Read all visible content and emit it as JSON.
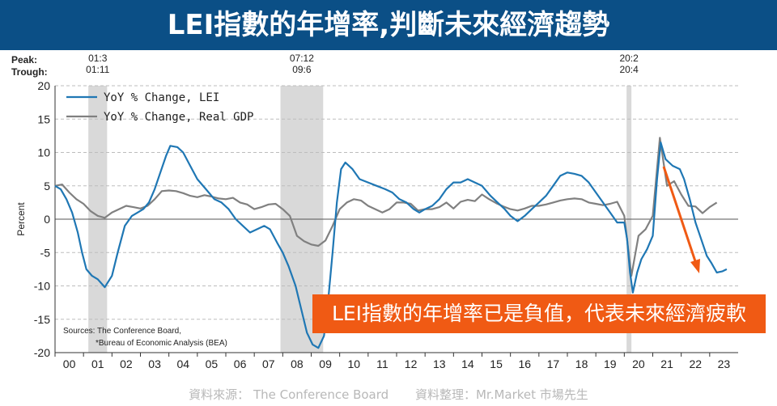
{
  "banner": {
    "title": "LEI指數的年增率,判斷未來經濟趨勢"
  },
  "callout": {
    "text": "LEI指數的年增率已是負值，代表未來經濟疲軟"
  },
  "footer": {
    "source": "資料來源： The Conference Board",
    "compiler": "資料整理：Mr.Market 市場先生"
  },
  "chart_data": {
    "type": "line",
    "peak_label": "Peak:",
    "trough_label": "Trough:",
    "ylabel": "Percent",
    "xlabel": "",
    "ylim": [
      -20,
      20
    ],
    "xlim": [
      2000,
      2024
    ],
    "yticks": [
      -20,
      -15,
      -10,
      -5,
      0,
      5,
      10,
      15,
      20
    ],
    "xtick_labels": [
      "00",
      "01",
      "02",
      "03",
      "04",
      "05",
      "06",
      "07",
      "08",
      "09",
      "10",
      "11",
      "12",
      "13",
      "14",
      "15",
      "16",
      "17",
      "18",
      "19",
      "20",
      "21",
      "22",
      "23"
    ],
    "grid": "horizontal dashed",
    "legend_position": "top-left",
    "sources": [
      "Sources: The Conference Board,",
      "*Bureau of Economic Analysis (BEA)"
    ],
    "recessions": [
      {
        "start": 2001.17,
        "end": 2001.83,
        "peak": "01:3",
        "trough": "01:11"
      },
      {
        "start": 2007.92,
        "end": 2009.42,
        "peak": "07:12",
        "trough": "09:6"
      },
      {
        "start": 2020.08,
        "end": 2020.25,
        "peak": "20:2",
        "trough": "20:4"
      }
    ],
    "series": [
      {
        "name": "YoY % Change, LEI",
        "color": "#1f77b4",
        "width": 2.2,
        "points": [
          [
            2000.0,
            5.0
          ],
          [
            2000.2,
            4.5
          ],
          [
            2000.4,
            3.0
          ],
          [
            2000.6,
            1.0
          ],
          [
            2000.8,
            -2.0
          ],
          [
            2000.95,
            -5.0
          ],
          [
            2001.1,
            -7.5
          ],
          [
            2001.3,
            -8.5
          ],
          [
            2001.5,
            -9.0
          ],
          [
            2001.75,
            -10.2
          ],
          [
            2002.0,
            -8.5
          ],
          [
            2002.2,
            -5.0
          ],
          [
            2002.45,
            -1.0
          ],
          [
            2002.7,
            0.5
          ],
          [
            2002.9,
            1.0
          ],
          [
            2003.1,
            1.5
          ],
          [
            2003.3,
            2.5
          ],
          [
            2003.5,
            4.5
          ],
          [
            2003.7,
            7.0
          ],
          [
            2003.9,
            9.5
          ],
          [
            2004.05,
            11.0
          ],
          [
            2004.3,
            10.8
          ],
          [
            2004.5,
            10.0
          ],
          [
            2004.75,
            8.0
          ],
          [
            2005.0,
            6.0
          ],
          [
            2005.3,
            4.5
          ],
          [
            2005.6,
            3.0
          ],
          [
            2005.85,
            2.5
          ],
          [
            2006.1,
            1.5
          ],
          [
            2006.35,
            0.0
          ],
          [
            2006.6,
            -1.0
          ],
          [
            2006.85,
            -2.0
          ],
          [
            2007.1,
            -1.5
          ],
          [
            2007.35,
            -1.0
          ],
          [
            2007.55,
            -1.5
          ],
          [
            2007.8,
            -3.5
          ],
          [
            2008.0,
            -5.0
          ],
          [
            2008.2,
            -7.0
          ],
          [
            2008.45,
            -10.0
          ],
          [
            2008.65,
            -13.5
          ],
          [
            2008.85,
            -17.0
          ],
          [
            2009.05,
            -18.8
          ],
          [
            2009.25,
            -19.3
          ],
          [
            2009.45,
            -17.5
          ],
          [
            2009.6,
            -12.0
          ],
          [
            2009.75,
            -5.0
          ],
          [
            2009.9,
            2.5
          ],
          [
            2010.05,
            7.5
          ],
          [
            2010.2,
            8.5
          ],
          [
            2010.45,
            7.5
          ],
          [
            2010.7,
            6.0
          ],
          [
            2011.0,
            5.5
          ],
          [
            2011.3,
            5.0
          ],
          [
            2011.6,
            4.5
          ],
          [
            2011.85,
            4.0
          ],
          [
            2012.1,
            3.0
          ],
          [
            2012.35,
            2.5
          ],
          [
            2012.6,
            1.5
          ],
          [
            2012.8,
            1.0
          ],
          [
            2013.0,
            1.5
          ],
          [
            2013.25,
            2.0
          ],
          [
            2013.5,
            3.0
          ],
          [
            2013.75,
            4.5
          ],
          [
            2014.0,
            5.5
          ],
          [
            2014.25,
            5.5
          ],
          [
            2014.5,
            6.0
          ],
          [
            2014.75,
            5.5
          ],
          [
            2015.0,
            5.0
          ],
          [
            2015.3,
            3.5
          ],
          [
            2015.55,
            2.5
          ],
          [
            2015.8,
            1.5
          ],
          [
            2016.0,
            0.5
          ],
          [
            2016.25,
            -0.3
          ],
          [
            2016.5,
            0.5
          ],
          [
            2016.75,
            1.5
          ],
          [
            2017.0,
            2.5
          ],
          [
            2017.25,
            3.5
          ],
          [
            2017.5,
            5.0
          ],
          [
            2017.75,
            6.5
          ],
          [
            2018.0,
            7.0
          ],
          [
            2018.25,
            6.8
          ],
          [
            2018.5,
            6.5
          ],
          [
            2018.75,
            5.5
          ],
          [
            2019.0,
            4.0
          ],
          [
            2019.25,
            2.5
          ],
          [
            2019.5,
            1.0
          ],
          [
            2019.75,
            -0.5
          ],
          [
            2020.0,
            -0.5
          ],
          [
            2020.1,
            -3.0
          ],
          [
            2020.2,
            -8.0
          ],
          [
            2020.3,
            -11.0
          ],
          [
            2020.45,
            -8.0
          ],
          [
            2020.6,
            -6.0
          ],
          [
            2020.8,
            -4.5
          ],
          [
            2021.0,
            -2.5
          ],
          [
            2021.15,
            6.0
          ],
          [
            2021.28,
            11.5
          ],
          [
            2021.45,
            9.0
          ],
          [
            2021.7,
            8.0
          ],
          [
            2021.95,
            7.5
          ],
          [
            2022.1,
            6.0
          ],
          [
            2022.3,
            3.0
          ],
          [
            2022.5,
            -0.5
          ],
          [
            2022.7,
            -3.0
          ],
          [
            2022.9,
            -5.5
          ],
          [
            2023.05,
            -6.5
          ],
          [
            2023.25,
            -8.0
          ],
          [
            2023.45,
            -7.8
          ],
          [
            2023.6,
            -7.5
          ]
        ]
      },
      {
        "name": "YoY % Change, Real GDP",
        "color": "#808080",
        "width": 2.2,
        "points": [
          [
            2000.0,
            5.0
          ],
          [
            2000.25,
            5.2
          ],
          [
            2000.5,
            4.0
          ],
          [
            2000.75,
            3.0
          ],
          [
            2001.0,
            2.3
          ],
          [
            2001.25,
            1.2
          ],
          [
            2001.5,
            0.5
          ],
          [
            2001.75,
            0.2
          ],
          [
            2002.0,
            1.0
          ],
          [
            2002.25,
            1.5
          ],
          [
            2002.5,
            2.0
          ],
          [
            2002.75,
            1.8
          ],
          [
            2003.0,
            1.6
          ],
          [
            2003.25,
            2.0
          ],
          [
            2003.5,
            3.0
          ],
          [
            2003.75,
            4.2
          ],
          [
            2004.0,
            4.3
          ],
          [
            2004.25,
            4.2
          ],
          [
            2004.5,
            3.9
          ],
          [
            2004.75,
            3.5
          ],
          [
            2005.0,
            3.3
          ],
          [
            2005.25,
            3.6
          ],
          [
            2005.5,
            3.4
          ],
          [
            2005.75,
            3.1
          ],
          [
            2006.0,
            3.0
          ],
          [
            2006.25,
            3.2
          ],
          [
            2006.5,
            2.5
          ],
          [
            2006.75,
            2.2
          ],
          [
            2007.0,
            1.5
          ],
          [
            2007.25,
            1.8
          ],
          [
            2007.5,
            2.2
          ],
          [
            2007.75,
            2.3
          ],
          [
            2008.0,
            1.5
          ],
          [
            2008.25,
            0.5
          ],
          [
            2008.5,
            -2.5
          ],
          [
            2008.75,
            -3.3
          ],
          [
            2009.0,
            -3.8
          ],
          [
            2009.25,
            -4.0
          ],
          [
            2009.5,
            -3.2
          ],
          [
            2009.75,
            -1.0
          ],
          [
            2010.0,
            1.5
          ],
          [
            2010.25,
            2.5
          ],
          [
            2010.5,
            3.0
          ],
          [
            2010.75,
            2.8
          ],
          [
            2011.0,
            2.0
          ],
          [
            2011.25,
            1.5
          ],
          [
            2011.5,
            1.0
          ],
          [
            2011.75,
            1.5
          ],
          [
            2012.0,
            2.5
          ],
          [
            2012.25,
            2.5
          ],
          [
            2012.5,
            2.3
          ],
          [
            2012.75,
            1.3
          ],
          [
            2013.0,
            1.5
          ],
          [
            2013.25,
            1.5
          ],
          [
            2013.5,
            1.8
          ],
          [
            2013.75,
            2.5
          ],
          [
            2014.0,
            1.6
          ],
          [
            2014.25,
            2.6
          ],
          [
            2014.5,
            2.9
          ],
          [
            2014.75,
            2.7
          ],
          [
            2015.0,
            3.7
          ],
          [
            2015.25,
            3.0
          ],
          [
            2015.5,
            2.4
          ],
          [
            2015.75,
            1.9
          ],
          [
            2016.0,
            1.5
          ],
          [
            2016.25,
            1.3
          ],
          [
            2016.5,
            1.6
          ],
          [
            2016.75,
            2.0
          ],
          [
            2017.0,
            2.0
          ],
          [
            2017.25,
            2.2
          ],
          [
            2017.5,
            2.5
          ],
          [
            2017.75,
            2.8
          ],
          [
            2018.0,
            3.0
          ],
          [
            2018.25,
            3.1
          ],
          [
            2018.5,
            3.0
          ],
          [
            2018.75,
            2.5
          ],
          [
            2019.0,
            2.3
          ],
          [
            2019.25,
            2.1
          ],
          [
            2019.5,
            2.3
          ],
          [
            2019.75,
            2.6
          ],
          [
            2020.0,
            0.5
          ],
          [
            2020.25,
            -8.5
          ],
          [
            2020.5,
            -2.5
          ],
          [
            2020.75,
            -1.5
          ],
          [
            2021.0,
            0.5
          ],
          [
            2021.25,
            12.2
          ],
          [
            2021.5,
            5.0
          ],
          [
            2021.75,
            5.7
          ],
          [
            2022.0,
            3.7
          ],
          [
            2022.25,
            2.0
          ],
          [
            2022.5,
            1.9
          ],
          [
            2022.75,
            0.9
          ],
          [
            2023.0,
            1.8
          ],
          [
            2023.25,
            2.5
          ]
        ]
      }
    ]
  }
}
